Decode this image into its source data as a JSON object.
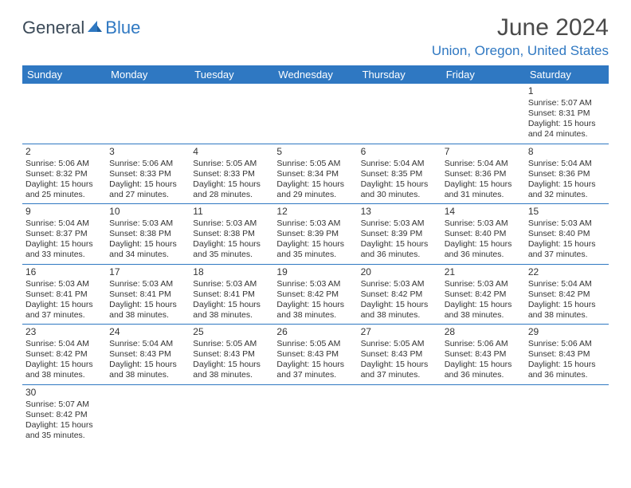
{
  "logo": {
    "text1": "General",
    "text2": "Blue"
  },
  "title": "June 2024",
  "location": "Union, Oregon, United States",
  "colors": {
    "header_bg": "#2f78c2",
    "header_text": "#ffffff",
    "accent": "#2f78c2",
    "body_text": "#333333",
    "logo_dark": "#3b4a58",
    "logo_blue": "#2f78c2"
  },
  "weekdays": [
    "Sunday",
    "Monday",
    "Tuesday",
    "Wednesday",
    "Thursday",
    "Friday",
    "Saturday"
  ],
  "weeks": [
    [
      null,
      null,
      null,
      null,
      null,
      null,
      {
        "d": "1",
        "sr": "Sunrise: 5:07 AM",
        "ss": "Sunset: 8:31 PM",
        "dl1": "Daylight: 15 hours",
        "dl2": "and 24 minutes."
      }
    ],
    [
      {
        "d": "2",
        "sr": "Sunrise: 5:06 AM",
        "ss": "Sunset: 8:32 PM",
        "dl1": "Daylight: 15 hours",
        "dl2": "and 25 minutes."
      },
      {
        "d": "3",
        "sr": "Sunrise: 5:06 AM",
        "ss": "Sunset: 8:33 PM",
        "dl1": "Daylight: 15 hours",
        "dl2": "and 27 minutes."
      },
      {
        "d": "4",
        "sr": "Sunrise: 5:05 AM",
        "ss": "Sunset: 8:33 PM",
        "dl1": "Daylight: 15 hours",
        "dl2": "and 28 minutes."
      },
      {
        "d": "5",
        "sr": "Sunrise: 5:05 AM",
        "ss": "Sunset: 8:34 PM",
        "dl1": "Daylight: 15 hours",
        "dl2": "and 29 minutes."
      },
      {
        "d": "6",
        "sr": "Sunrise: 5:04 AM",
        "ss": "Sunset: 8:35 PM",
        "dl1": "Daylight: 15 hours",
        "dl2": "and 30 minutes."
      },
      {
        "d": "7",
        "sr": "Sunrise: 5:04 AM",
        "ss": "Sunset: 8:36 PM",
        "dl1": "Daylight: 15 hours",
        "dl2": "and 31 minutes."
      },
      {
        "d": "8",
        "sr": "Sunrise: 5:04 AM",
        "ss": "Sunset: 8:36 PM",
        "dl1": "Daylight: 15 hours",
        "dl2": "and 32 minutes."
      }
    ],
    [
      {
        "d": "9",
        "sr": "Sunrise: 5:04 AM",
        "ss": "Sunset: 8:37 PM",
        "dl1": "Daylight: 15 hours",
        "dl2": "and 33 minutes."
      },
      {
        "d": "10",
        "sr": "Sunrise: 5:03 AM",
        "ss": "Sunset: 8:38 PM",
        "dl1": "Daylight: 15 hours",
        "dl2": "and 34 minutes."
      },
      {
        "d": "11",
        "sr": "Sunrise: 5:03 AM",
        "ss": "Sunset: 8:38 PM",
        "dl1": "Daylight: 15 hours",
        "dl2": "and 35 minutes."
      },
      {
        "d": "12",
        "sr": "Sunrise: 5:03 AM",
        "ss": "Sunset: 8:39 PM",
        "dl1": "Daylight: 15 hours",
        "dl2": "and 35 minutes."
      },
      {
        "d": "13",
        "sr": "Sunrise: 5:03 AM",
        "ss": "Sunset: 8:39 PM",
        "dl1": "Daylight: 15 hours",
        "dl2": "and 36 minutes."
      },
      {
        "d": "14",
        "sr": "Sunrise: 5:03 AM",
        "ss": "Sunset: 8:40 PM",
        "dl1": "Daylight: 15 hours",
        "dl2": "and 36 minutes."
      },
      {
        "d": "15",
        "sr": "Sunrise: 5:03 AM",
        "ss": "Sunset: 8:40 PM",
        "dl1": "Daylight: 15 hours",
        "dl2": "and 37 minutes."
      }
    ],
    [
      {
        "d": "16",
        "sr": "Sunrise: 5:03 AM",
        "ss": "Sunset: 8:41 PM",
        "dl1": "Daylight: 15 hours",
        "dl2": "and 37 minutes."
      },
      {
        "d": "17",
        "sr": "Sunrise: 5:03 AM",
        "ss": "Sunset: 8:41 PM",
        "dl1": "Daylight: 15 hours",
        "dl2": "and 38 minutes."
      },
      {
        "d": "18",
        "sr": "Sunrise: 5:03 AM",
        "ss": "Sunset: 8:41 PM",
        "dl1": "Daylight: 15 hours",
        "dl2": "and 38 minutes."
      },
      {
        "d": "19",
        "sr": "Sunrise: 5:03 AM",
        "ss": "Sunset: 8:42 PM",
        "dl1": "Daylight: 15 hours",
        "dl2": "and 38 minutes."
      },
      {
        "d": "20",
        "sr": "Sunrise: 5:03 AM",
        "ss": "Sunset: 8:42 PM",
        "dl1": "Daylight: 15 hours",
        "dl2": "and 38 minutes."
      },
      {
        "d": "21",
        "sr": "Sunrise: 5:03 AM",
        "ss": "Sunset: 8:42 PM",
        "dl1": "Daylight: 15 hours",
        "dl2": "and 38 minutes."
      },
      {
        "d": "22",
        "sr": "Sunrise: 5:04 AM",
        "ss": "Sunset: 8:42 PM",
        "dl1": "Daylight: 15 hours",
        "dl2": "and 38 minutes."
      }
    ],
    [
      {
        "d": "23",
        "sr": "Sunrise: 5:04 AM",
        "ss": "Sunset: 8:42 PM",
        "dl1": "Daylight: 15 hours",
        "dl2": "and 38 minutes."
      },
      {
        "d": "24",
        "sr": "Sunrise: 5:04 AM",
        "ss": "Sunset: 8:43 PM",
        "dl1": "Daylight: 15 hours",
        "dl2": "and 38 minutes."
      },
      {
        "d": "25",
        "sr": "Sunrise: 5:05 AM",
        "ss": "Sunset: 8:43 PM",
        "dl1": "Daylight: 15 hours",
        "dl2": "and 38 minutes."
      },
      {
        "d": "26",
        "sr": "Sunrise: 5:05 AM",
        "ss": "Sunset: 8:43 PM",
        "dl1": "Daylight: 15 hours",
        "dl2": "and 37 minutes."
      },
      {
        "d": "27",
        "sr": "Sunrise: 5:05 AM",
        "ss": "Sunset: 8:43 PM",
        "dl1": "Daylight: 15 hours",
        "dl2": "and 37 minutes."
      },
      {
        "d": "28",
        "sr": "Sunrise: 5:06 AM",
        "ss": "Sunset: 8:43 PM",
        "dl1": "Daylight: 15 hours",
        "dl2": "and 36 minutes."
      },
      {
        "d": "29",
        "sr": "Sunrise: 5:06 AM",
        "ss": "Sunset: 8:43 PM",
        "dl1": "Daylight: 15 hours",
        "dl2": "and 36 minutes."
      }
    ],
    [
      {
        "d": "30",
        "sr": "Sunrise: 5:07 AM",
        "ss": "Sunset: 8:42 PM",
        "dl1": "Daylight: 15 hours",
        "dl2": "and 35 minutes."
      },
      null,
      null,
      null,
      null,
      null,
      null
    ]
  ]
}
